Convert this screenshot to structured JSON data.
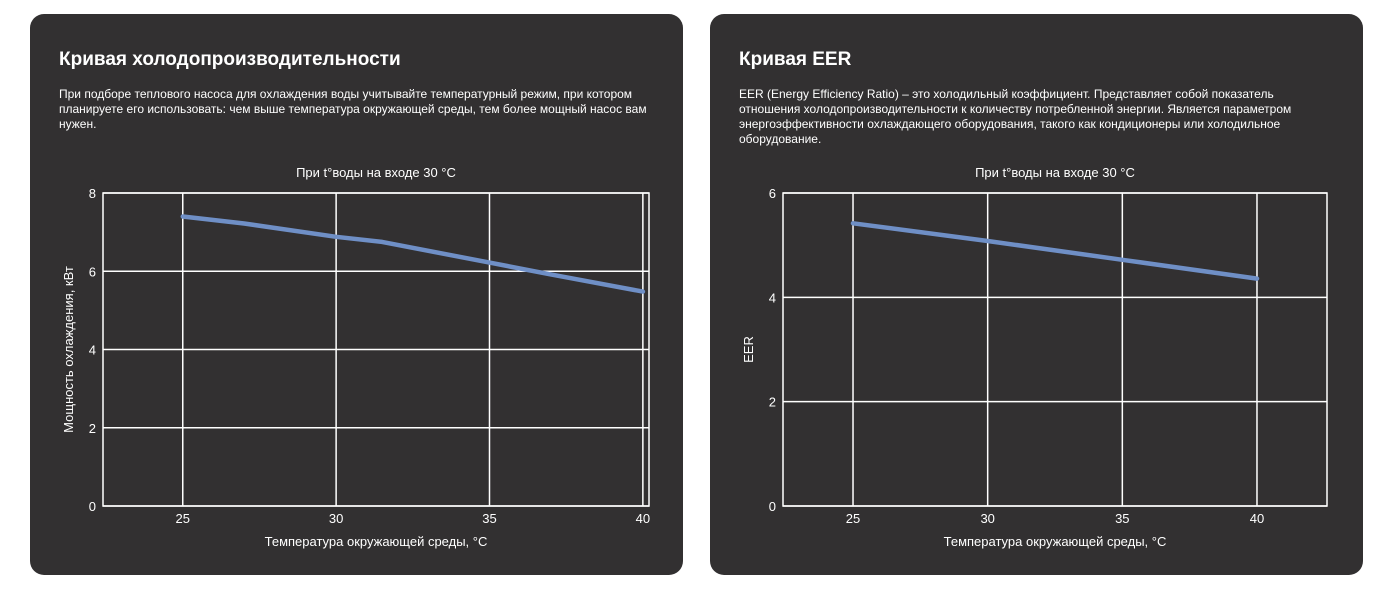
{
  "colors": {
    "card_bg": "#323031",
    "line": "#6f8fc6",
    "grid": "#ffffff",
    "text": "#ffffff"
  },
  "cards": [
    {
      "title": "Кривая холодопроизводительности",
      "description": "При подборе теплового насоса для охлаждения воды учитывайте температурный режим, при котором планируете его использовать: чем выше температура окружающей среды, тем более мощный насос вам нужен."
    },
    {
      "title": "Кривая EER",
      "description": "EER (Energy Efficiency Ratio) – это холодильный коэффициент. Представляет собой показатель отношения холодопроизводительности к количеству потребленной энергии. Является параметром энергоэффективности охлаждающего оборудования, такого как кондиционеры или холодильное оборудование."
    }
  ],
  "chart_data": [
    {
      "type": "line",
      "title": "При t°воды на входе 30 °C",
      "xlabel": "Температура окружающей среды, °C",
      "ylabel": "Мощность охлаждения, кВт",
      "xlim": [
        22.4,
        40.2
      ],
      "ylim": [
        0,
        8
      ],
      "xticks": [
        25,
        30,
        35,
        40
      ],
      "yticks": [
        0,
        2,
        4,
        6,
        8
      ],
      "grid": true,
      "series": [
        {
          "x": [
            25,
            27,
            30,
            31.5,
            35,
            37,
            40
          ],
          "y": [
            7.4,
            7.22,
            6.88,
            6.75,
            6.22,
            5.92,
            5.48
          ]
        }
      ]
    },
    {
      "type": "line",
      "title": "При t°воды на входе 30 °C",
      "xlabel": "Температура окружающей среды, °C",
      "ylabel": "EER",
      "xlim": [
        22.4,
        42.6
      ],
      "ylim": [
        0,
        6
      ],
      "xticks": [
        25,
        30,
        35,
        40
      ],
      "yticks": [
        0,
        2,
        4,
        6
      ],
      "grid": true,
      "series": [
        {
          "x": [
            25,
            30,
            35,
            40
          ],
          "y": [
            5.42,
            5.08,
            4.72,
            4.36
          ]
        }
      ]
    }
  ]
}
